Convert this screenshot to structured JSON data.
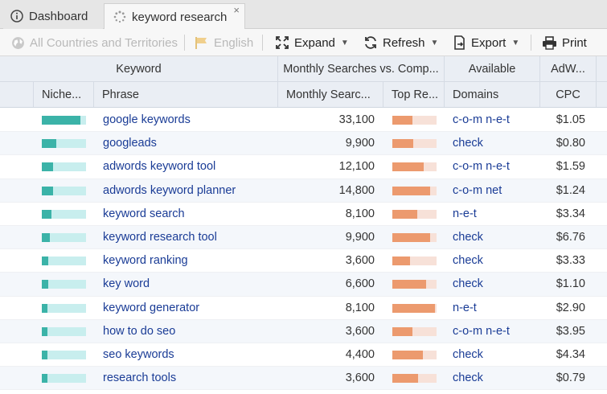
{
  "tabs": [
    {
      "label": "Dashboard",
      "icon": "info-icon"
    },
    {
      "label": "keyword research",
      "icon": "loading-spinner-icon",
      "close": "×"
    }
  ],
  "toolbar": {
    "country": "All Countries and Territories",
    "language": "English",
    "expand": "Expand",
    "refresh": "Refresh",
    "export": "Export",
    "print": "Print"
  },
  "header_groups": {
    "keyword": "Keyword",
    "monthly": "Monthly Searches vs. Comp...",
    "available": "Available",
    "adwords": "AdW..."
  },
  "columns": {
    "niche": "Niche...",
    "phrase": "Phrase",
    "monthly": "Monthly Searc...",
    "top": "Top Re...",
    "domains": "Domains",
    "cpc": "CPC"
  },
  "rows": [
    {
      "niche": 0.88,
      "phrase": "google keywords",
      "searches": "33,100",
      "top": 0.45,
      "domains": "c-o-m n-e-t",
      "cpc": "$1.05"
    },
    {
      "niche": 0.32,
      "phrase": "googleads",
      "searches": "9,900",
      "top": 0.47,
      "domains": "check",
      "cpc": "$0.80"
    },
    {
      "niche": 0.26,
      "phrase": "adwords keyword tool",
      "searches": "12,100",
      "top": 0.7,
      "domains": "c-o-m n-e-t",
      "cpc": "$1.59"
    },
    {
      "niche": 0.26,
      "phrase": "adwords keyword planner",
      "searches": "14,800",
      "top": 0.85,
      "domains": "c-o-m net",
      "cpc": "$1.24"
    },
    {
      "niche": 0.22,
      "phrase": "keyword search",
      "searches": "8,100",
      "top": 0.56,
      "domains": "n-e-t",
      "cpc": "$3.34"
    },
    {
      "niche": 0.18,
      "phrase": "keyword research tool",
      "searches": "9,900",
      "top": 0.85,
      "domains": "check",
      "cpc": "$6.76"
    },
    {
      "niche": 0.14,
      "phrase": "keyword ranking",
      "searches": "3,600",
      "top": 0.4,
      "domains": "check",
      "cpc": "$3.33"
    },
    {
      "niche": 0.14,
      "phrase": "key word",
      "searches": "6,600",
      "top": 0.76,
      "domains": "check",
      "cpc": "$1.10"
    },
    {
      "niche": 0.12,
      "phrase": "keyword generator",
      "searches": "8,100",
      "top": 0.96,
      "domains": "n-e-t",
      "cpc": "$2.90"
    },
    {
      "niche": 0.12,
      "phrase": "how to do seo",
      "searches": "3,600",
      "top": 0.45,
      "domains": "c-o-m n-e-t",
      "cpc": "$3.95"
    },
    {
      "niche": 0.12,
      "phrase": "seo keywords",
      "searches": "4,400",
      "top": 0.69,
      "domains": "check",
      "cpc": "$4.34"
    },
    {
      "niche": 0.12,
      "phrase": "research tools",
      "searches": "3,600",
      "top": 0.58,
      "domains": "check",
      "cpc": "$0.79"
    }
  ]
}
